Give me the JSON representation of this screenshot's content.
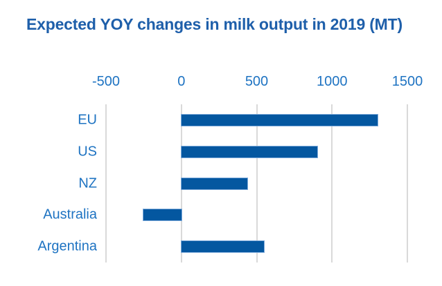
{
  "title": "Expected YOY changes in milk output in 2019 (MT)",
  "colors": {
    "title_text": "#1E5FAA",
    "axis_and_category_text": "#1E73C2",
    "bar_fill": "#0457A0",
    "bar_edge": "#7FABDB",
    "gridline": "#D9D9D9",
    "background": "#FFFFFF"
  },
  "chart_data": {
    "type": "bar",
    "orientation": "horizontal",
    "title": "Expected YOY changes in milk output in 2019 (MT)",
    "categories": [
      "EU",
      "US",
      "NZ",
      "Australia",
      "Argentina"
    ],
    "values": [
      1300,
      900,
      440,
      -250,
      550
    ],
    "xlabel": "",
    "ylabel": "",
    "xlim": [
      -500,
      1500
    ],
    "x_ticks": [
      -500,
      0,
      500,
      1000,
      1500
    ],
    "x_tick_labels": [
      "-500",
      "0",
      "500",
      "1000",
      "1500"
    ],
    "tick_position": "top",
    "grid": "vertical gridlines at each x tick",
    "legend": "none",
    "data_labels": "none"
  }
}
